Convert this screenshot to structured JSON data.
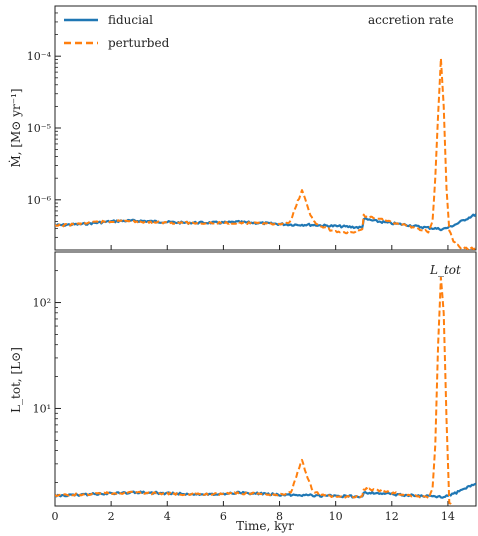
{
  "chart_data": [
    {
      "type": "line",
      "panel": "top",
      "annotation": "accretion rate",
      "ylabel": "Ṁ, [M⊙ yr⁻¹]",
      "yscale": "log",
      "ylim": [
        2e-07,
        0.0005
      ],
      "yticks": [
        {
          "value": 1e-06,
          "label": "10⁻⁶"
        },
        {
          "value": 1e-05,
          "label": "10⁻⁵"
        },
        {
          "value": 0.0001,
          "label": "10⁻⁴"
        }
      ],
      "xlim": [
        0,
        15
      ],
      "legend": {
        "position": "top-left",
        "entries": [
          "fiducial",
          "perturbed"
        ]
      },
      "series": [
        {
          "name": "fiducial",
          "color": "#1f77b4",
          "style": "solid",
          "x": [
            0,
            0.5,
            1,
            1.5,
            2,
            2.5,
            3,
            3.5,
            4,
            4.5,
            5,
            5.5,
            6,
            6.5,
            7,
            7.5,
            8,
            8.5,
            9,
            9.5,
            10,
            10.5,
            10.95,
            11.0,
            11.5,
            12,
            12.5,
            13,
            13.5,
            13.8,
            14,
            14.3,
            14.6,
            15
          ],
          "y": [
            4.4e-07,
            4.5e-07,
            4.6e-07,
            4.8e-07,
            5e-07,
            5.1e-07,
            5.1e-07,
            5e-07,
            4.9e-07,
            4.8e-07,
            4.8e-07,
            4.8e-07,
            4.8e-07,
            4.9e-07,
            4.8e-07,
            4.7e-07,
            4.6e-07,
            4.5e-07,
            4.5e-07,
            4.4e-07,
            4.3e-07,
            4.2e-07,
            4.1e-07,
            5.4e-07,
            5e-07,
            4.7e-07,
            4.5e-07,
            4.2e-07,
            4e-07,
            3.9e-07,
            4.1e-07,
            4.6e-07,
            5.3e-07,
            6.3e-07
          ]
        },
        {
          "name": "perturbed",
          "color": "#ff7f0e",
          "style": "dashed",
          "x": [
            0,
            0.5,
            1,
            1.5,
            2,
            2.5,
            3,
            3.5,
            4,
            4.5,
            5,
            5.5,
            6,
            6.5,
            7,
            7.5,
            8,
            8.4,
            8.6,
            8.8,
            9.0,
            9.2,
            9.5,
            10,
            10.5,
            10.95,
            11.0,
            11.5,
            12,
            12.5,
            13,
            13.3,
            13.45,
            13.55,
            13.65,
            13.75,
            13.85,
            13.95,
            14.05,
            14.2,
            14.4,
            14.7,
            15
          ],
          "y": [
            4.3e-07,
            4.5e-07,
            4.7e-07,
            4.9e-07,
            5e-07,
            5.1e-07,
            5e-07,
            4.9e-07,
            4.8e-07,
            4.8e-07,
            4.7e-07,
            4.7e-07,
            4.8e-07,
            4.8e-07,
            4.7e-07,
            4.6e-07,
            4.5e-07,
            5e-07,
            8.5e-07,
            1.35e-06,
            8e-07,
            5e-07,
            4.2e-07,
            3.6e-07,
            3.5e-07,
            3.8e-07,
            6e-07,
            5.5e-07,
            4.9e-07,
            4.4e-07,
            3.9e-07,
            3.6e-07,
            5e-07,
            2e-06,
            1.5e-05,
            9e-05,
            2e-05,
            1.5e-06,
            3.8e-07,
            2.6e-07,
            2.2e-07,
            2.1e-07,
            2.1e-07
          ]
        }
      ]
    },
    {
      "type": "line",
      "panel": "bottom",
      "annotation": "L_tot",
      "ylabel": "L_tot, [L⊙]",
      "xlabel": "Time, kyr",
      "yscale": "log",
      "ylim": [
        1.2,
        300
      ],
      "yticks": [
        {
          "value": 10,
          "label": "10¹"
        },
        {
          "value": 100,
          "label": "10²"
        }
      ],
      "xlim": [
        0,
        15
      ],
      "xticks": [
        0,
        2,
        4,
        6,
        8,
        10,
        12,
        14
      ],
      "series": [
        {
          "name": "fiducial",
          "color": "#1f77b4",
          "style": "solid",
          "x": [
            0,
            0.5,
            1,
            1.5,
            2,
            2.5,
            3,
            3.5,
            4,
            4.5,
            5,
            5.5,
            6,
            6.5,
            7,
            7.5,
            8,
            8.5,
            9,
            9.5,
            10,
            10.5,
            10.95,
            11.0,
            11.5,
            12,
            12.5,
            13,
            13.5,
            13.8,
            14,
            14.3,
            14.6,
            15
          ],
          "y": [
            1.5,
            1.52,
            1.54,
            1.56,
            1.58,
            1.6,
            1.62,
            1.6,
            1.58,
            1.57,
            1.56,
            1.55,
            1.57,
            1.6,
            1.58,
            1.56,
            1.54,
            1.52,
            1.52,
            1.5,
            1.49,
            1.48,
            1.47,
            1.6,
            1.58,
            1.55,
            1.52,
            1.49,
            1.47,
            1.46,
            1.5,
            1.6,
            1.75,
            1.95
          ]
        },
        {
          "name": "perturbed",
          "color": "#ff7f0e",
          "style": "dashed",
          "x": [
            0,
            0.5,
            1,
            1.5,
            2,
            2.5,
            3,
            3.5,
            4,
            4.5,
            5,
            5.5,
            6,
            6.5,
            7,
            7.5,
            8,
            8.4,
            8.6,
            8.8,
            9.0,
            9.2,
            9.5,
            10,
            10.5,
            10.95,
            11.0,
            11.5,
            12,
            12.5,
            13,
            13.3,
            13.45,
            13.55,
            13.65,
            13.75,
            13.85,
            13.95,
            14.05,
            14.2
          ],
          "y": [
            1.5,
            1.53,
            1.55,
            1.57,
            1.59,
            1.6,
            1.6,
            1.58,
            1.57,
            1.56,
            1.55,
            1.55,
            1.56,
            1.58,
            1.57,
            1.55,
            1.53,
            1.6,
            2.3,
            3.3,
            2.2,
            1.65,
            1.52,
            1.47,
            1.45,
            1.47,
            1.75,
            1.68,
            1.6,
            1.53,
            1.48,
            1.45,
            1.7,
            4.5,
            40,
            175,
            80,
            8,
            1.3,
            1.2
          ]
        }
      ]
    }
  ]
}
